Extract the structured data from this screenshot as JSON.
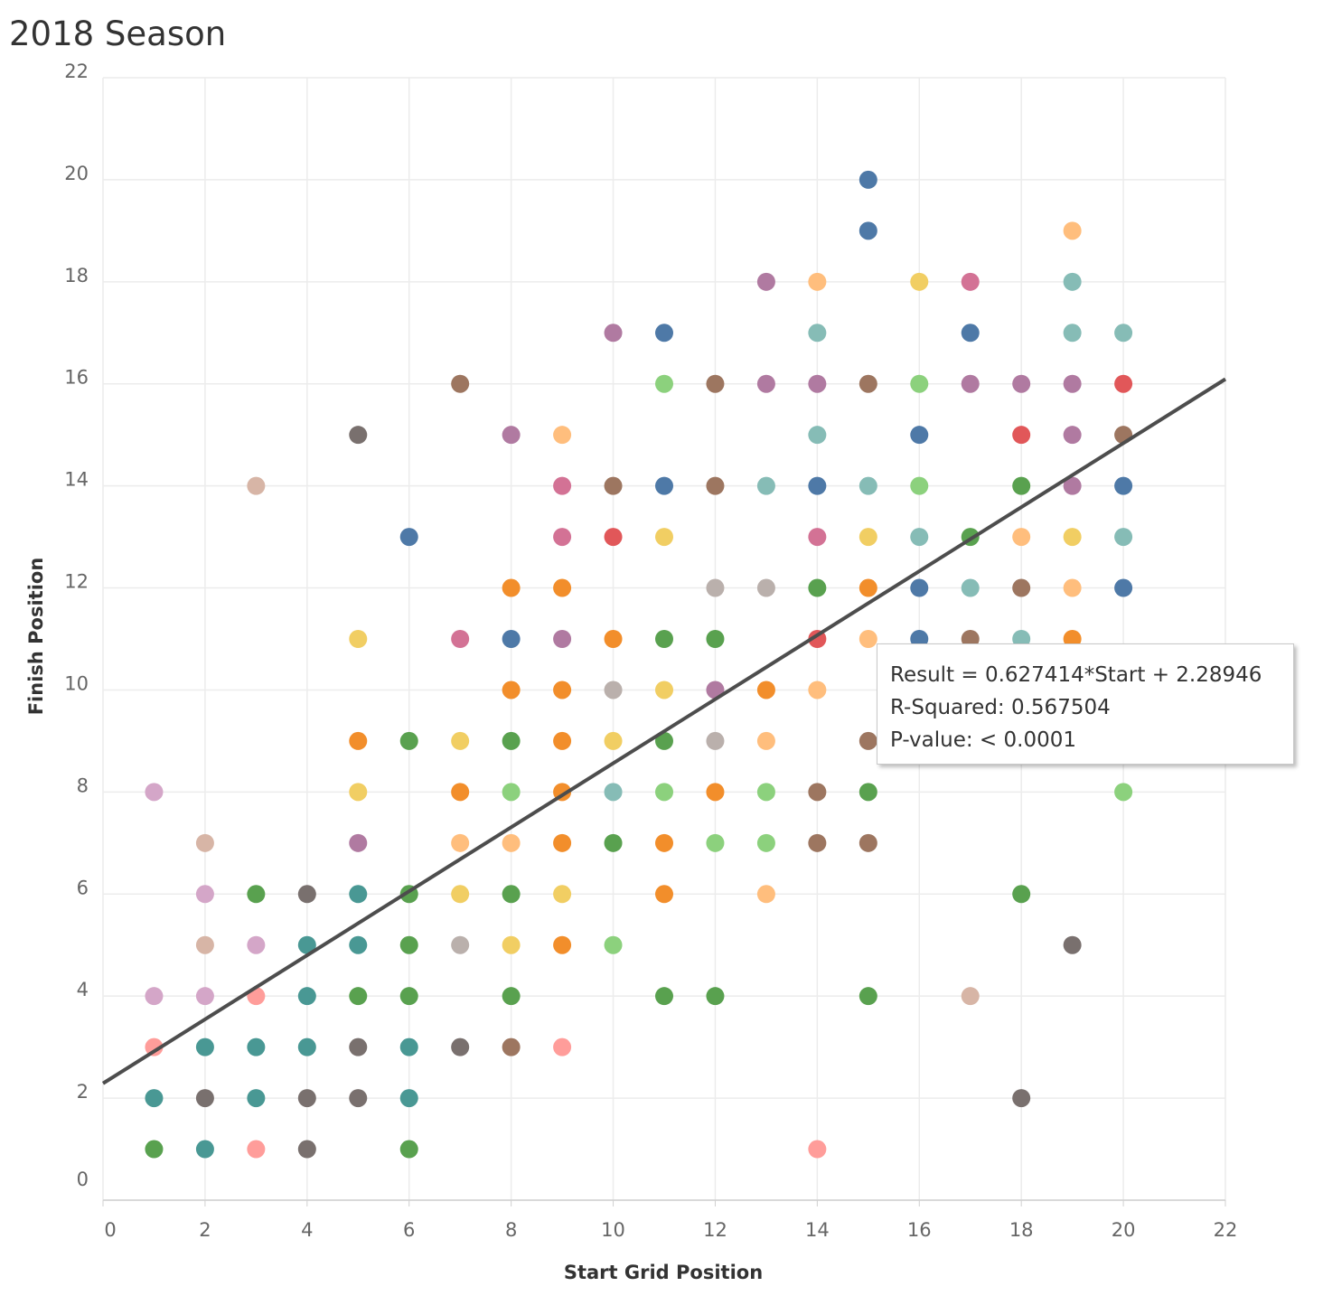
{
  "title": "2018 Season",
  "tooltip": {
    "equation": "Result = 0.627414*Start + 2.28946",
    "r_squared": "R-Squared: 0.567504",
    "p_value": "P-value: < 0.0001"
  },
  "chart_data": {
    "type": "scatter",
    "title": "2018 Season",
    "xlabel": "Start Grid Position",
    "ylabel": "Finish Position",
    "xlim": [
      0,
      22
    ],
    "ylim": [
      0,
      22
    ],
    "xticks": [
      0,
      2,
      4,
      6,
      8,
      10,
      12,
      14,
      16,
      18,
      20,
      22
    ],
    "yticks": [
      0,
      2,
      4,
      6,
      8,
      10,
      12,
      14,
      16,
      18,
      20,
      22
    ],
    "grid": true,
    "trend_line": {
      "slope": 0.627414,
      "intercept": 2.28946,
      "color": "#4d4d4d"
    },
    "colors": {
      "blue": "#4e79a7",
      "orange": "#f28e2b",
      "lightorange": "#ffbe7d",
      "green": "#59a14f",
      "lightgreen": "#8cd17d",
      "yellow": "#f1ce63",
      "teal": "#499894",
      "lightteal": "#86bcb6",
      "red": "#e15759",
      "pink": "#ff9d9a",
      "gray": "#79706e",
      "silver": "#bab0ac",
      "magenta": "#d37295",
      "lightpink": "#d4a6c8",
      "purple": "#b07aa1",
      "brown": "#9d7660",
      "tan": "#d7b5a6"
    },
    "points": [
      {
        "x": 1,
        "y": 8,
        "c": "lightpink"
      },
      {
        "x": 1,
        "y": 4,
        "c": "lightpink"
      },
      {
        "x": 1,
        "y": 3,
        "c": "pink"
      },
      {
        "x": 1,
        "y": 2,
        "c": "teal"
      },
      {
        "x": 1,
        "y": 1,
        "c": "green"
      },
      {
        "x": 2,
        "y": 7,
        "c": "tan"
      },
      {
        "x": 2,
        "y": 6,
        "c": "lightpink"
      },
      {
        "x": 2,
        "y": 5,
        "c": "tan"
      },
      {
        "x": 2,
        "y": 4,
        "c": "lightpink"
      },
      {
        "x": 2,
        "y": 3,
        "c": "teal"
      },
      {
        "x": 2,
        "y": 2,
        "c": "gray"
      },
      {
        "x": 2,
        "y": 1,
        "c": "teal"
      },
      {
        "x": 3,
        "y": 14,
        "c": "tan"
      },
      {
        "x": 3,
        "y": 6,
        "c": "green"
      },
      {
        "x": 3,
        "y": 5,
        "c": "lightpink"
      },
      {
        "x": 3,
        "y": 4,
        "c": "pink"
      },
      {
        "x": 3,
        "y": 3,
        "c": "teal"
      },
      {
        "x": 3,
        "y": 2,
        "c": "teal"
      },
      {
        "x": 3,
        "y": 1,
        "c": "pink"
      },
      {
        "x": 4,
        "y": 6,
        "c": "gray"
      },
      {
        "x": 4,
        "y": 5,
        "c": "teal"
      },
      {
        "x": 4,
        "y": 4,
        "c": "teal"
      },
      {
        "x": 4,
        "y": 3,
        "c": "teal"
      },
      {
        "x": 4,
        "y": 2,
        "c": "gray"
      },
      {
        "x": 4,
        "y": 1,
        "c": "gray"
      },
      {
        "x": 5,
        "y": 15,
        "c": "gray"
      },
      {
        "x": 5,
        "y": 11,
        "c": "yellow"
      },
      {
        "x": 5,
        "y": 9,
        "c": "orange"
      },
      {
        "x": 5,
        "y": 8,
        "c": "yellow"
      },
      {
        "x": 5,
        "y": 7,
        "c": "purple"
      },
      {
        "x": 5,
        "y": 6,
        "c": "teal"
      },
      {
        "x": 5,
        "y": 5,
        "c": "teal"
      },
      {
        "x": 5,
        "y": 4,
        "c": "green"
      },
      {
        "x": 5,
        "y": 3,
        "c": "gray"
      },
      {
        "x": 5,
        "y": 2,
        "c": "gray"
      },
      {
        "x": 6,
        "y": 13,
        "c": "blue"
      },
      {
        "x": 6,
        "y": 9,
        "c": "green"
      },
      {
        "x": 6,
        "y": 6,
        "c": "green"
      },
      {
        "x": 6,
        "y": 5,
        "c": "green"
      },
      {
        "x": 6,
        "y": 4,
        "c": "green"
      },
      {
        "x": 6,
        "y": 3,
        "c": "teal"
      },
      {
        "x": 6,
        "y": 2,
        "c": "teal"
      },
      {
        "x": 6,
        "y": 1,
        "c": "green"
      },
      {
        "x": 7,
        "y": 16,
        "c": "brown"
      },
      {
        "x": 7,
        "y": 11,
        "c": "magenta"
      },
      {
        "x": 7,
        "y": 9,
        "c": "yellow"
      },
      {
        "x": 7,
        "y": 8,
        "c": "orange"
      },
      {
        "x": 7,
        "y": 7,
        "c": "lightorange"
      },
      {
        "x": 7,
        "y": 6,
        "c": "yellow"
      },
      {
        "x": 7,
        "y": 5,
        "c": "silver"
      },
      {
        "x": 7,
        "y": 3,
        "c": "gray"
      },
      {
        "x": 8,
        "y": 15,
        "c": "purple"
      },
      {
        "x": 8,
        "y": 12,
        "c": "orange"
      },
      {
        "x": 8,
        "y": 11,
        "c": "blue"
      },
      {
        "x": 8,
        "y": 10,
        "c": "orange"
      },
      {
        "x": 8,
        "y": 9,
        "c": "green"
      },
      {
        "x": 8,
        "y": 8,
        "c": "lightgreen"
      },
      {
        "x": 8,
        "y": 7,
        "c": "lightorange"
      },
      {
        "x": 8,
        "y": 6,
        "c": "green"
      },
      {
        "x": 8,
        "y": 5,
        "c": "yellow"
      },
      {
        "x": 8,
        "y": 4,
        "c": "green"
      },
      {
        "x": 8,
        "y": 3,
        "c": "brown"
      },
      {
        "x": 9,
        "y": 15,
        "c": "lightorange"
      },
      {
        "x": 9,
        "y": 14,
        "c": "magenta"
      },
      {
        "x": 9,
        "y": 13,
        "c": "magenta"
      },
      {
        "x": 9,
        "y": 12,
        "c": "orange"
      },
      {
        "x": 9,
        "y": 11,
        "c": "purple"
      },
      {
        "x": 9,
        "y": 10,
        "c": "orange"
      },
      {
        "x": 9,
        "y": 9,
        "c": "orange"
      },
      {
        "x": 9,
        "y": 8,
        "c": "orange"
      },
      {
        "x": 9,
        "y": 7,
        "c": "orange"
      },
      {
        "x": 9,
        "y": 6,
        "c": "yellow"
      },
      {
        "x": 9,
        "y": 5,
        "c": "orange"
      },
      {
        "x": 9,
        "y": 3,
        "c": "pink"
      },
      {
        "x": 10,
        "y": 17,
        "c": "purple"
      },
      {
        "x": 10,
        "y": 14,
        "c": "brown"
      },
      {
        "x": 10,
        "y": 13,
        "c": "red"
      },
      {
        "x": 10,
        "y": 11,
        "c": "orange"
      },
      {
        "x": 10,
        "y": 10,
        "c": "silver"
      },
      {
        "x": 10,
        "y": 9,
        "c": "yellow"
      },
      {
        "x": 10,
        "y": 8,
        "c": "lightteal"
      },
      {
        "x": 10,
        "y": 7,
        "c": "green"
      },
      {
        "x": 10,
        "y": 5,
        "c": "lightgreen"
      },
      {
        "x": 11,
        "y": 17,
        "c": "blue"
      },
      {
        "x": 11,
        "y": 16,
        "c": "lightgreen"
      },
      {
        "x": 11,
        "y": 14,
        "c": "blue"
      },
      {
        "x": 11,
        "y": 13,
        "c": "yellow"
      },
      {
        "x": 11,
        "y": 11,
        "c": "green"
      },
      {
        "x": 11,
        "y": 10,
        "c": "yellow"
      },
      {
        "x": 11,
        "y": 9,
        "c": "green"
      },
      {
        "x": 11,
        "y": 8,
        "c": "lightgreen"
      },
      {
        "x": 11,
        "y": 7,
        "c": "orange"
      },
      {
        "x": 11,
        "y": 6,
        "c": "orange"
      },
      {
        "x": 11,
        "y": 4,
        "c": "green"
      },
      {
        "x": 12,
        "y": 16,
        "c": "brown"
      },
      {
        "x": 12,
        "y": 14,
        "c": "brown"
      },
      {
        "x": 12,
        "y": 12,
        "c": "silver"
      },
      {
        "x": 12,
        "y": 11,
        "c": "green"
      },
      {
        "x": 12,
        "y": 10,
        "c": "purple"
      },
      {
        "x": 12,
        "y": 9,
        "c": "silver"
      },
      {
        "x": 12,
        "y": 8,
        "c": "orange"
      },
      {
        "x": 12,
        "y": 7,
        "c": "lightgreen"
      },
      {
        "x": 12,
        "y": 4,
        "c": "green"
      },
      {
        "x": 13,
        "y": 18,
        "c": "purple"
      },
      {
        "x": 13,
        "y": 16,
        "c": "purple"
      },
      {
        "x": 13,
        "y": 14,
        "c": "lightteal"
      },
      {
        "x": 13,
        "y": 12,
        "c": "silver"
      },
      {
        "x": 13,
        "y": 10,
        "c": "orange"
      },
      {
        "x": 13,
        "y": 9,
        "c": "lightorange"
      },
      {
        "x": 13,
        "y": 8,
        "c": "lightgreen"
      },
      {
        "x": 13,
        "y": 7,
        "c": "lightgreen"
      },
      {
        "x": 13,
        "y": 6,
        "c": "lightorange"
      },
      {
        "x": 14,
        "y": 18,
        "c": "lightorange"
      },
      {
        "x": 14,
        "y": 17,
        "c": "lightteal"
      },
      {
        "x": 14,
        "y": 16,
        "c": "purple"
      },
      {
        "x": 14,
        "y": 15,
        "c": "lightteal"
      },
      {
        "x": 14,
        "y": 14,
        "c": "blue"
      },
      {
        "x": 14,
        "y": 13,
        "c": "magenta"
      },
      {
        "x": 14,
        "y": 12,
        "c": "green"
      },
      {
        "x": 14,
        "y": 11,
        "c": "red"
      },
      {
        "x": 14,
        "y": 10,
        "c": "lightorange"
      },
      {
        "x": 14,
        "y": 8,
        "c": "brown"
      },
      {
        "x": 14,
        "y": 7,
        "c": "brown"
      },
      {
        "x": 14,
        "y": 1,
        "c": "pink"
      },
      {
        "x": 15,
        "y": 20,
        "c": "blue"
      },
      {
        "x": 15,
        "y": 19,
        "c": "blue"
      },
      {
        "x": 15,
        "y": 16,
        "c": "brown"
      },
      {
        "x": 15,
        "y": 14,
        "c": "lightteal"
      },
      {
        "x": 15,
        "y": 13,
        "c": "yellow"
      },
      {
        "x": 15,
        "y": 12,
        "c": "orange"
      },
      {
        "x": 15,
        "y": 11,
        "c": "lightorange"
      },
      {
        "x": 15,
        "y": 9,
        "c": "brown"
      },
      {
        "x": 15,
        "y": 8,
        "c": "green"
      },
      {
        "x": 15,
        "y": 7,
        "c": "brown"
      },
      {
        "x": 15,
        "y": 4,
        "c": "green"
      },
      {
        "x": 16,
        "y": 18,
        "c": "yellow"
      },
      {
        "x": 16,
        "y": 16,
        "c": "lightgreen"
      },
      {
        "x": 16,
        "y": 15,
        "c": "blue"
      },
      {
        "x": 16,
        "y": 14,
        "c": "lightgreen"
      },
      {
        "x": 16,
        "y": 13,
        "c": "lightteal"
      },
      {
        "x": 16,
        "y": 12,
        "c": "blue"
      },
      {
        "x": 16,
        "y": 11,
        "c": "blue"
      },
      {
        "x": 17,
        "y": 18,
        "c": "magenta"
      },
      {
        "x": 17,
        "y": 17,
        "c": "blue"
      },
      {
        "x": 17,
        "y": 16,
        "c": "purple"
      },
      {
        "x": 17,
        "y": 13,
        "c": "green"
      },
      {
        "x": 17,
        "y": 12,
        "c": "lightteal"
      },
      {
        "x": 17,
        "y": 11,
        "c": "brown"
      },
      {
        "x": 17,
        "y": 4,
        "c": "tan"
      },
      {
        "x": 18,
        "y": 16,
        "c": "purple"
      },
      {
        "x": 18,
        "y": 15,
        "c": "red"
      },
      {
        "x": 18,
        "y": 14,
        "c": "green"
      },
      {
        "x": 18,
        "y": 13,
        "c": "lightorange"
      },
      {
        "x": 18,
        "y": 12,
        "c": "brown"
      },
      {
        "x": 18,
        "y": 11,
        "c": "lightteal"
      },
      {
        "x": 18,
        "y": 6,
        "c": "green"
      },
      {
        "x": 18,
        "y": 2,
        "c": "gray"
      },
      {
        "x": 19,
        "y": 19,
        "c": "lightorange"
      },
      {
        "x": 19,
        "y": 18,
        "c": "lightteal"
      },
      {
        "x": 19,
        "y": 17,
        "c": "lightteal"
      },
      {
        "x": 19,
        "y": 16,
        "c": "purple"
      },
      {
        "x": 19,
        "y": 15,
        "c": "purple"
      },
      {
        "x": 19,
        "y": 14,
        "c": "purple"
      },
      {
        "x": 19,
        "y": 13,
        "c": "yellow"
      },
      {
        "x": 19,
        "y": 12,
        "c": "lightorange"
      },
      {
        "x": 19,
        "y": 11,
        "c": "orange"
      },
      {
        "x": 19,
        "y": 5,
        "c": "gray"
      },
      {
        "x": 20,
        "y": 17,
        "c": "lightteal"
      },
      {
        "x": 20,
        "y": 16,
        "c": "red"
      },
      {
        "x": 20,
        "y": 15,
        "c": "brown"
      },
      {
        "x": 20,
        "y": 14,
        "c": "blue"
      },
      {
        "x": 20,
        "y": 13,
        "c": "lightteal"
      },
      {
        "x": 20,
        "y": 12,
        "c": "blue"
      },
      {
        "x": 20,
        "y": 8,
        "c": "lightgreen"
      }
    ]
  }
}
